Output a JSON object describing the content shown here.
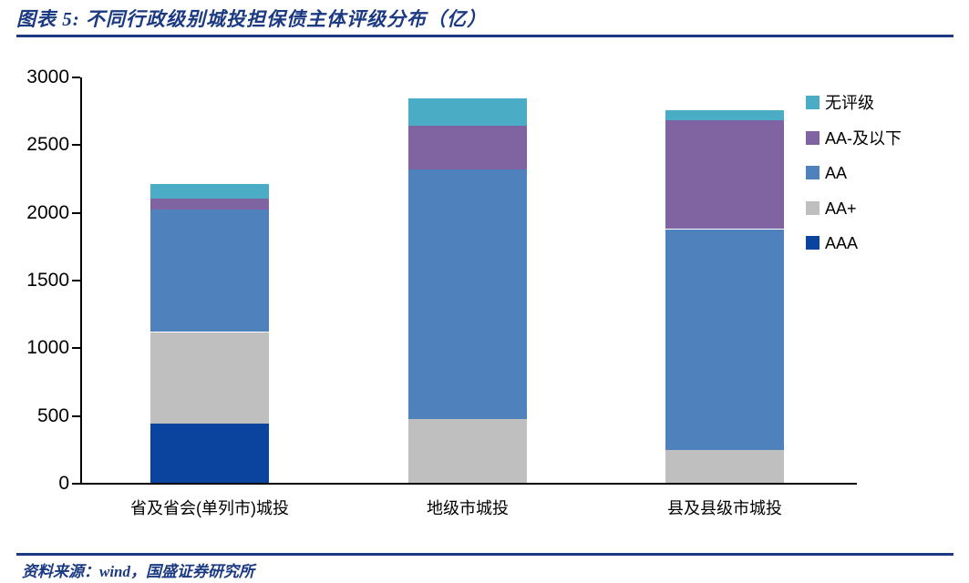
{
  "header": {
    "title": "图表 5:  不同行政级别城投担保债主体评级分布（亿）"
  },
  "footer": {
    "source": "资料来源：wind，国盛证券研究所"
  },
  "colors": {
    "accent_navy": "#1B3A82",
    "axis_black": "#000000"
  },
  "chart_data": {
    "type": "bar",
    "stacked": true,
    "title": "不同行政级别城投担保债主体评级分布（亿）",
    "categories": [
      "省及省会(单列市)城投",
      "地级市城投",
      "县及县级市城投"
    ],
    "series": [
      {
        "name": "AAA",
        "color": "#0B449E",
        "values": [
          445,
          0,
          0
        ]
      },
      {
        "name": "AA+",
        "color": "#BFBFBF",
        "values": [
          675,
          480,
          250
        ]
      },
      {
        "name": "AA",
        "color": "#4F81BD",
        "values": [
          905,
          1840,
          1630
        ]
      },
      {
        "name": "AA-及以下",
        "color": "#8064A2",
        "values": [
          80,
          325,
          805
        ]
      },
      {
        "name": "无评级",
        "color": "#4BACC6",
        "values": [
          105,
          200,
          75
        ]
      }
    ],
    "totals": [
      2210,
      2845,
      2760
    ],
    "ylim": [
      0,
      3000
    ],
    "yticks": [
      0,
      500,
      1000,
      1500,
      2000,
      2500,
      3000
    ],
    "xlabel": "",
    "ylabel": "",
    "grid": false,
    "legend_position": "right",
    "legend_order": [
      "无评级",
      "AA-及以下",
      "AA",
      "AA+",
      "AAA"
    ]
  }
}
